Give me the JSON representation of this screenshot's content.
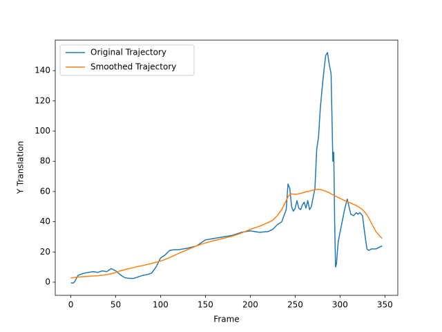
{
  "chart_data": {
    "type": "line",
    "xlabel": "Frame",
    "ylabel": "Y Translation",
    "x": [
      0,
      3,
      5,
      8,
      10,
      15,
      20,
      25,
      30,
      35,
      40,
      45,
      50,
      55,
      60,
      65,
      70,
      75,
      80,
      85,
      90,
      95,
      100,
      105,
      110,
      115,
      120,
      130,
      140,
      150,
      160,
      170,
      180,
      190,
      200,
      210,
      220,
      225,
      230,
      235,
      240,
      242,
      244,
      246,
      248,
      250,
      252,
      254,
      256,
      258,
      260,
      262,
      264,
      266,
      268,
      270,
      272,
      274,
      276,
      278,
      280,
      282,
      284,
      286,
      288,
      290,
      292,
      293,
      294,
      295,
      296,
      297,
      298,
      300,
      305,
      308,
      310,
      312,
      315,
      318,
      320,
      322,
      325,
      328,
      330,
      332,
      335,
      340,
      345,
      347
    ],
    "series": [
      {
        "name": "Original Trajectory",
        "color": "#1f77b4",
        "values": [
          -0.5,
          -0.5,
          1,
          4.5,
          5,
          6,
          6.5,
          7,
          6.5,
          7.5,
          7,
          9,
          7.5,
          5,
          3,
          2.5,
          2.5,
          3.5,
          4.5,
          5,
          6,
          10,
          16,
          18,
          21,
          21.5,
          21.5,
          22.5,
          24,
          28,
          29,
          30,
          31,
          33,
          34,
          33,
          33.5,
          35,
          38,
          40,
          48,
          65,
          62,
          50,
          47,
          49,
          54,
          49,
          48,
          51,
          53,
          49,
          54,
          48,
          50,
          56,
          62,
          88,
          96,
          115,
          128,
          140,
          150,
          152,
          144,
          138,
          80,
          86,
          40,
          10,
          12,
          20,
          27,
          33,
          48,
          55,
          50,
          45,
          44,
          46,
          45,
          46,
          44,
          30,
          22,
          21,
          22,
          22,
          23.5,
          24
        ]
      },
      {
        "name": "Smoothed Trajectory",
        "color": "#ff7f0e",
        "values": [
          2.8,
          3,
          3.2,
          3.4,
          3.5,
          3.7,
          3.9,
          4.1,
          4.3,
          4.6,
          5,
          5.6,
          6.5,
          7.5,
          8.3,
          9,
          9.7,
          10.4,
          11,
          11.7,
          12.4,
          13.2,
          14,
          15,
          16.3,
          17.6,
          19,
          21.5,
          24,
          26,
          27.5,
          29,
          30.5,
          32.5,
          35,
          37,
          39.5,
          41,
          44,
          48,
          54,
          56.5,
          58,
          58.5,
          58.3,
          58.2,
          58.3,
          58.5,
          58.8,
          59,
          59.5,
          59.8,
          60,
          60.3,
          60.6,
          61,
          61.2,
          61.4,
          61.5,
          61.3,
          61,
          60.6,
          60.2,
          59.7,
          59.2,
          58.5,
          57.8,
          57.5,
          57.2,
          56.9,
          56.6,
          56.3,
          56,
          55.5,
          54,
          53.3,
          52.8,
          52.3,
          51.5,
          50.8,
          50,
          49.3,
          48,
          46,
          44.5,
          42.5,
          39,
          33.5,
          30,
          29
        ]
      }
    ],
    "xlim": [
      -17.35,
      364.35
    ],
    "xticks": [
      0,
      50,
      100,
      150,
      200,
      250,
      300,
      350
    ],
    "ylim": [
      -8.7,
      160.2
    ],
    "yticks": [
      0,
      20,
      40,
      60,
      80,
      100,
      120,
      140
    ],
    "legend": "upper left",
    "grid": false
  }
}
